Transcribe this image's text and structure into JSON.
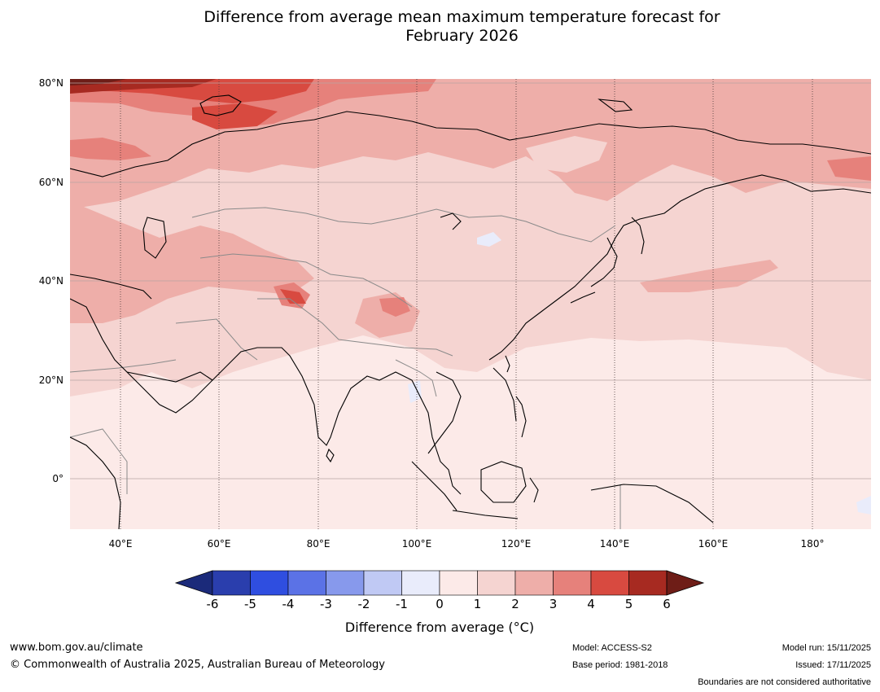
{
  "title": {
    "line1": "Difference from average mean maximum temperature forecast for",
    "line2": "February 2026"
  },
  "map": {
    "region": "Asia",
    "lat_labels": [
      "80°N",
      "60°N",
      "40°N",
      "20°N",
      "0°"
    ],
    "lon_labels": [
      "40°E",
      "60°E",
      "80°E",
      "100°E",
      "120°E",
      "140°E",
      "160°E",
      "180°"
    ]
  },
  "colorbar": {
    "ticks": [
      "-6",
      "-5",
      "-4",
      "-3",
      "-2",
      "-1",
      "0",
      "1",
      "2",
      "3",
      "4",
      "5",
      "6"
    ],
    "colors": [
      "#1b2a7a",
      "#2a3ead",
      "#2f4ee0",
      "#5b72e6",
      "#8799ec",
      "#c0c9f4",
      "#e9ecfb",
      "#fceae8",
      "#f5d4d1",
      "#eeaea9",
      "#e6817b",
      "#d84a40",
      "#a72a21",
      "#6e1d17"
    ],
    "label": "Difference from average (°C)"
  },
  "footer": {
    "website": "www.bom.gov.au/climate",
    "copyright": "© Commonwealth of Australia 2025, Australian Bureau of Meteorology",
    "model": "Model: ACCESS-S2",
    "base_period": "Base period: 1981-2018",
    "model_run": "Model run: 15/11/2025",
    "issued": "Issued: 17/11/2025",
    "disclaimer": "Boundaries are not considered authoritative"
  }
}
